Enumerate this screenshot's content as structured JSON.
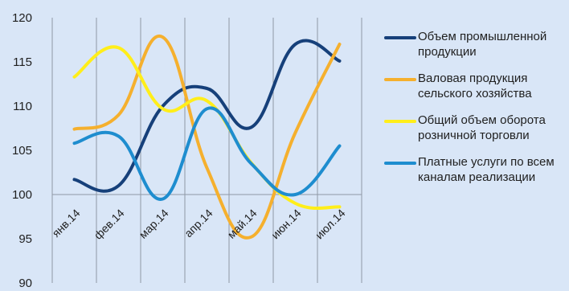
{
  "chart_data": {
    "type": "line",
    "categories": [
      "янв.14",
      "фев.14",
      "мар.14",
      "апр.14",
      "май.14",
      "июн.14",
      "июл.14"
    ],
    "ylim": [
      90,
      120
    ],
    "yticks": [
      90,
      95,
      100,
      105,
      110,
      115,
      120
    ],
    "grid": true,
    "legend_position": "right",
    "series": [
      {
        "name": "Объем промышленной продукции",
        "color": "#16407a",
        "values": [
          101.7,
          101.0,
          110.0,
          112.0,
          107.6,
          117.0,
          115.1
        ]
      },
      {
        "name": "Валовая продукция сельского хозяйства",
        "color": "#f5b02e",
        "values": [
          107.4,
          109.0,
          117.8,
          103.0,
          95.2,
          107.0,
          117.0
        ]
      },
      {
        "name": "Общий объем оборота розничной торговли",
        "color": "#ffee1a",
        "values": [
          113.3,
          116.6,
          109.7,
          110.6,
          103.6,
          99.0,
          98.6
        ]
      },
      {
        "name": "Платные услуги по всем каналам реализации",
        "color": "#1e8dcf",
        "values": [
          105.8,
          106.6,
          99.5,
          109.7,
          103.5,
          100.0,
          105.5
        ]
      }
    ]
  }
}
